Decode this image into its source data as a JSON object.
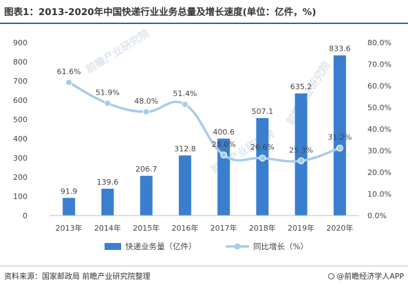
{
  "title": "图表1：2013-2020年中国快递行业业务总量及增长速度(单位：亿件，%)",
  "source": "资料来源：国家邮政局 前瞻产业研究院整理",
  "brand": "@前瞻经济学人APP",
  "watermarks": [
    "前瞻产业研究院",
    "前瞻产业研究院",
    "前瞻产业研究院"
  ],
  "colors": {
    "bar": "#3a7fcf",
    "line": "#a9cbea",
    "title_rule": "#2f5fa7"
  },
  "chart_data": {
    "type": "bar",
    "categories": [
      "2013年",
      "2014年",
      "2015年",
      "2016年",
      "2017年",
      "2018年",
      "2019年",
      "2020年"
    ],
    "series": [
      {
        "name": "快递业务量（亿件）",
        "type": "bar",
        "axis": "left",
        "values": [
          91.9,
          139.6,
          206.7,
          312.8,
          400.6,
          507.1,
          635.2,
          833.6
        ],
        "labels": [
          "91.9",
          "139.6",
          "206.7",
          "312.8",
          "400.6",
          "507.1",
          "635.2",
          "833.6"
        ]
      },
      {
        "name": "同比增长（%）",
        "type": "line",
        "axis": "right",
        "values": [
          61.6,
          51.9,
          48.0,
          51.4,
          28.0,
          26.6,
          25.3,
          31.2
        ],
        "labels": [
          "61.6%",
          "51.9%",
          "48.0%",
          "51.4%",
          "28.0%",
          "26.6%",
          "25.3%",
          "31.2%"
        ]
      }
    ],
    "ylim_left": [
      0,
      900
    ],
    "ylim_right": [
      0,
      80
    ],
    "yticks_left": [
      "0",
      "100",
      "200",
      "300",
      "400",
      "500",
      "600",
      "700",
      "800",
      "900"
    ],
    "yticks_right": [
      "0.0%",
      "10.0%",
      "20.0%",
      "30.0%",
      "40.0%",
      "50.0%",
      "60.0%",
      "70.0%",
      "80.0%"
    ],
    "grid": false,
    "legend_position": "bottom"
  }
}
